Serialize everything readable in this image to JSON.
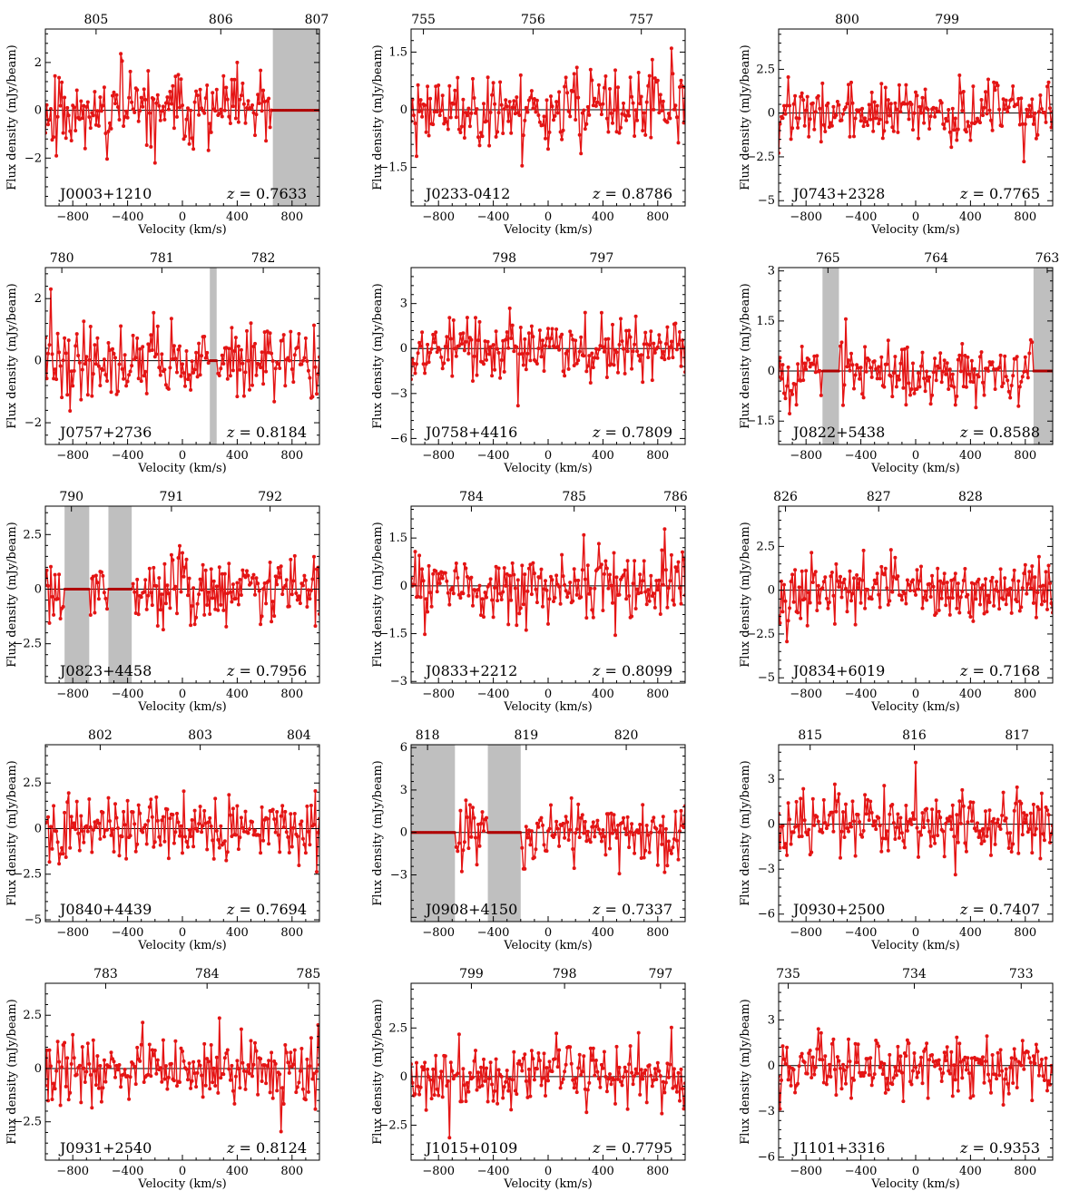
{
  "chart_data": [
    {
      "type": "line",
      "source": "J0003+1210",
      "z": "0.7633",
      "xlabel": "Velocity (km/s)",
      "ylabel": "Flux density (mJy/beam)",
      "xlim": [
        -1000,
        1000
      ],
      "ylim": [
        -4.0,
        3.4
      ],
      "yticks": [
        -2,
        0,
        2
      ],
      "xticks": [
        -800,
        -400,
        0,
        400,
        800
      ],
      "top_ticks": [
        {
          "label": "805",
          "v": -630
        },
        {
          "label": "806",
          "v": 280
        },
        {
          "label": "807",
          "v": 980
        }
      ],
      "masked_ranges": [
        [
          660,
          1000
        ]
      ],
      "noise_amp": 1.3,
      "line_color": "#e41414",
      "seed": 11
    },
    {
      "type": "line",
      "source": "J0233-0412",
      "z": "0.8786",
      "xlabel": "Velocity (km/s)",
      "ylabel": "Flux density (mJy/beam)",
      "xlim": [
        -1000,
        1000
      ],
      "ylim": [
        -2.5,
        2.1
      ],
      "yticks": [
        -1.5,
        0.0,
        1.5
      ],
      "xticks": [
        -800,
        -400,
        0,
        400,
        800
      ],
      "top_ticks": [
        {
          "label": "755",
          "v": -910
        },
        {
          "label": "756",
          "v": -110
        },
        {
          "label": "757",
          "v": 680
        }
      ],
      "masked_ranges": [],
      "noise_amp": 0.8,
      "line_color": "#e41414",
      "seed": 23
    },
    {
      "type": "line",
      "source": "J0743+2328",
      "z": "0.7765",
      "xlabel": "Velocity (km/s)",
      "ylabel": "Flux density (mJy/beam)",
      "xlim": [
        -1000,
        1000
      ],
      "ylim": [
        -5.3,
        4.8
      ],
      "yticks": [
        -5.0,
        -2.5,
        0.0,
        2.5
      ],
      "xticks": [
        -800,
        -400,
        0,
        400,
        800
      ],
      "top_ticks": [
        {
          "label": "800",
          "v": -500
        },
        {
          "label": "799",
          "v": 230
        }
      ],
      "masked_ranges": [],
      "noise_amp": 1.4,
      "line_color": "#e41414",
      "seed": 37
    },
    {
      "type": "line",
      "source": "J0757+2736",
      "z": "0.8184",
      "xlabel": "Velocity (km/s)",
      "ylabel": "Flux density (mJy/beam)",
      "xlim": [
        -1000,
        1000
      ],
      "ylim": [
        -2.7,
        3.0
      ],
      "yticks": [
        -2,
        0,
        2
      ],
      "xticks": [
        -800,
        -400,
        0,
        400,
        800
      ],
      "top_ticks": [
        {
          "label": "780",
          "v": -880
        },
        {
          "label": "781",
          "v": -150
        },
        {
          "label": "782",
          "v": 590
        }
      ],
      "masked_ranges": [
        [
          200,
          250
        ]
      ],
      "noise_amp": 1.0,
      "line_color": "#e41414",
      "seed": 41
    },
    {
      "type": "line",
      "source": "J0758+4416",
      "z": "0.7809",
      "xlabel": "Velocity (km/s)",
      "ylabel": "Flux density (mJy/beam)",
      "xlim": [
        -1000,
        1000
      ],
      "ylim": [
        -6.4,
        5.4
      ],
      "yticks": [
        -6,
        -3,
        0,
        3
      ],
      "xticks": [
        -800,
        -400,
        0,
        400,
        800
      ],
      "top_ticks": [
        {
          "label": "798",
          "v": -320
        },
        {
          "label": "797",
          "v": 390
        }
      ],
      "masked_ranges": [],
      "noise_amp": 1.7,
      "line_color": "#e41414",
      "seed": 53
    },
    {
      "type": "line",
      "source": "J0822+5438",
      "z": "0.8588",
      "xlabel": "Velocity (km/s)",
      "ylabel": "Flux density (mJy/beam)",
      "xlim": [
        -1000,
        1000
      ],
      "ylim": [
        -2.2,
        3.1
      ],
      "yticks": [
        -1.5,
        0.0,
        1.5,
        3.0
      ],
      "xticks": [
        -800,
        -400,
        0,
        400,
        800
      ],
      "top_ticks": [
        {
          "label": "765",
          "v": -640
        },
        {
          "label": "764",
          "v": 150
        },
        {
          "label": "763",
          "v": 960
        }
      ],
      "masked_ranges": [
        [
          -680,
          -560
        ],
        [
          860,
          1000
        ]
      ],
      "noise_amp": 0.8,
      "line_color": "#e41414",
      "seed": 67
    },
    {
      "type": "line",
      "source": "J0823+4458",
      "z": "0.7956",
      "xlabel": "Velocity (km/s)",
      "ylabel": "Flux density (mJy/beam)",
      "xlim": [
        -1000,
        1000
      ],
      "ylim": [
        -4.3,
        3.8
      ],
      "yticks": [
        -2.5,
        0.0,
        2.5
      ],
      "xticks": [
        -800,
        -400,
        0,
        400,
        800
      ],
      "top_ticks": [
        {
          "label": "790",
          "v": -810
        },
        {
          "label": "791",
          "v": -80
        },
        {
          "label": "792",
          "v": 640
        }
      ],
      "masked_ranges": [
        [
          -860,
          -680
        ],
        [
          -540,
          -370
        ]
      ],
      "noise_amp": 1.3,
      "line_color": "#e41414",
      "seed": 79
    },
    {
      "type": "line",
      "source": "J0833+2212",
      "z": "0.8099",
      "xlabel": "Velocity (km/s)",
      "ylabel": "Flux density (mJy/beam)",
      "xlim": [
        -1000,
        1000
      ],
      "ylim": [
        -3.05,
        2.5
      ],
      "yticks": [
        -3.0,
        -1.5,
        0.0,
        1.5
      ],
      "xticks": [
        -800,
        -400,
        0,
        400,
        800
      ],
      "top_ticks": [
        {
          "label": "784",
          "v": -560
        },
        {
          "label": "785",
          "v": 190
        },
        {
          "label": "786",
          "v": 930
        }
      ],
      "masked_ranges": [],
      "noise_amp": 0.9,
      "line_color": "#e41414",
      "seed": 83
    },
    {
      "type": "line",
      "source": "J0834+6019",
      "z": "0.7168",
      "xlabel": "Velocity (km/s)",
      "ylabel": "Flux density (mJy/beam)",
      "xlim": [
        -1000,
        1000
      ],
      "ylim": [
        -5.3,
        4.8
      ],
      "yticks": [
        -5.0,
        -2.5,
        0.0,
        2.5
      ],
      "xticks": [
        -800,
        -400,
        0,
        400,
        800
      ],
      "top_ticks": [
        {
          "label": "826",
          "v": -950
        },
        {
          "label": "827",
          "v": -270
        },
        {
          "label": "828",
          "v": 400
        }
      ],
      "masked_ranges": [],
      "noise_amp": 1.4,
      "line_color": "#e41414",
      "seed": 97
    },
    {
      "type": "line",
      "source": "J0840+4439",
      "z": "0.7694",
      "xlabel": "Velocity (km/s)",
      "ylabel": "Flux density (mJy/beam)",
      "xlim": [
        -1000,
        1000
      ],
      "ylim": [
        -5.1,
        4.6
      ],
      "yticks": [
        -5.0,
        -2.5,
        0.0,
        2.5
      ],
      "xticks": [
        -800,
        -400,
        0,
        400,
        800
      ],
      "top_ticks": [
        {
          "label": "802",
          "v": -600
        },
        {
          "label": "803",
          "v": 130
        },
        {
          "label": "804",
          "v": 850
        }
      ],
      "masked_ranges": [],
      "noise_amp": 1.4,
      "line_color": "#e41414",
      "seed": 101
    },
    {
      "type": "line",
      "source": "J0908+4150",
      "z": "0.7337",
      "xlabel": "Velocity (km/s)",
      "ylabel": "Flux density (mJy/beam)",
      "xlim": [
        -1000,
        1000
      ],
      "ylim": [
        -6.3,
        6.2
      ],
      "yticks": [
        -3,
        0,
        3,
        6
      ],
      "xticks": [
        -800,
        -400,
        0,
        400,
        800
      ],
      "top_ticks": [
        {
          "label": "818",
          "v": -880
        },
        {
          "label": "819",
          "v": -160
        },
        {
          "label": "820",
          "v": 570
        }
      ],
      "masked_ranges": [
        [
          -1000,
          -680
        ],
        [
          -440,
          -200
        ]
      ],
      "noise_amp": 1.8,
      "line_color": "#e41414",
      "seed": 113
    },
    {
      "type": "line",
      "source": "J0930+2500",
      "z": "0.7407",
      "xlabel": "Velocity (km/s)",
      "ylabel": "Flux density (mJy/beam)",
      "xlim": [
        -1000,
        1000
      ],
      "ylim": [
        -6.5,
        5.3
      ],
      "yticks": [
        -6,
        -3,
        0,
        3
      ],
      "xticks": [
        -800,
        -400,
        0,
        400,
        800
      ],
      "top_ticks": [
        {
          "label": "815",
          "v": -770
        },
        {
          "label": "816",
          "v": -10
        },
        {
          "label": "817",
          "v": 740
        }
      ],
      "masked_ranges": [],
      "noise_amp": 1.7,
      "line_color": "#e41414",
      "seed": 127
    },
    {
      "type": "line",
      "source": "J0931+2540",
      "z": "0.8124",
      "xlabel": "Velocity (km/s)",
      "ylabel": "Flux density (mJy/beam)",
      "xlim": [
        -1000,
        1000
      ],
      "ylim": [
        -4.3,
        4.0
      ],
      "yticks": [
        -2.5,
        0.0,
        2.5
      ],
      "xticks": [
        -800,
        -400,
        0,
        400,
        800
      ],
      "top_ticks": [
        {
          "label": "783",
          "v": -560
        },
        {
          "label": "784",
          "v": 180
        },
        {
          "label": "785",
          "v": 920
        }
      ],
      "masked_ranges": [],
      "noise_amp": 1.3,
      "line_color": "#e41414",
      "seed": 131
    },
    {
      "type": "line",
      "source": "J1015+0109",
      "z": "0.7795",
      "xlabel": "Velocity (km/s)",
      "ylabel": "Flux density (mJy/beam)",
      "xlim": [
        -1000,
        1000
      ],
      "ylim": [
        -4.3,
        4.8
      ],
      "yticks": [
        -2.5,
        0.0,
        2.5
      ],
      "xticks": [
        -800,
        -400,
        0,
        400,
        800
      ],
      "top_ticks": [
        {
          "label": "799",
          "v": -560
        },
        {
          "label": "798",
          "v": 120
        },
        {
          "label": "797",
          "v": 820
        }
      ],
      "masked_ranges": [],
      "noise_amp": 1.3,
      "line_color": "#e41414",
      "seed": 149
    },
    {
      "type": "line",
      "source": "J1101+3316",
      "z": "0.9353",
      "xlabel": "Velocity (km/s)",
      "ylabel": "Flux density (mJy/beam)",
      "xlim": [
        -1000,
        1000
      ],
      "ylim": [
        -6.2,
        5.4
      ],
      "yticks": [
        -6,
        -3,
        0,
        3
      ],
      "xticks": [
        -800,
        -400,
        0,
        400,
        800
      ],
      "top_ticks": [
        {
          "label": "735",
          "v": -930
        },
        {
          "label": "734",
          "v": -10
        },
        {
          "label": "733",
          "v": 770
        }
      ],
      "masked_ranges": [],
      "noise_amp": 1.7,
      "line_color": "#e41414",
      "seed": 157
    }
  ],
  "colors": {
    "line": "#e41414",
    "mask": "#bfbfbf",
    "masked_line": "#b00000",
    "axis": "#000000",
    "zero_line": "#000000"
  }
}
